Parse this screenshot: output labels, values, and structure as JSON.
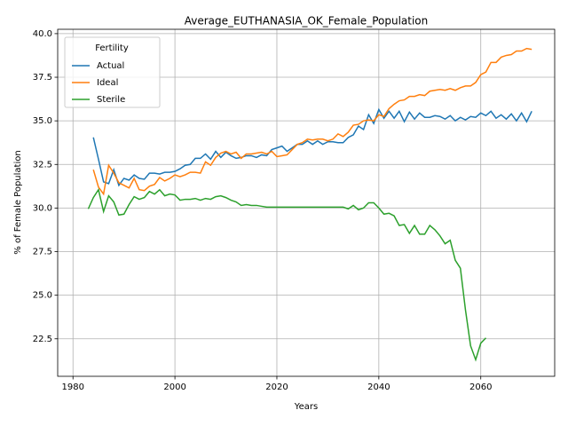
{
  "chart_data": {
    "type": "line",
    "title": "Average_EUTHANASIA_OK_Female_Population",
    "xlabel": "Years",
    "ylabel": "% of Female Population",
    "legend_title": "Fertility",
    "legend": "upper left",
    "grid": true,
    "xlim": [
      1977,
      2074.5
    ],
    "ylim": [
      20.35,
      40.25
    ],
    "xticks": [
      1980,
      2000,
      2020,
      2040,
      2060
    ],
    "yticks": [
      22.5,
      {
        "value": 25,
        "label": "25.0"
      },
      27.5,
      {
        "value": 30,
        "label": "30.0"
      },
      32.5,
      {
        "value": 35,
        "label": "35.0"
      },
      37.5,
      {
        "value": 40,
        "label": "40.0"
      }
    ],
    "x": [
      1983,
      1984,
      1985,
      1986,
      1987,
      1988,
      1989,
      1990,
      1991,
      1992,
      1993,
      1994,
      1995,
      1996,
      1997,
      1998,
      1999,
      2000,
      2001,
      2002,
      2003,
      2004,
      2005,
      2006,
      2007,
      2008,
      2009,
      2010,
      2011,
      2012,
      2013,
      2014,
      2015,
      2016,
      2017,
      2018,
      2019,
      2020,
      2021,
      2022,
      2023,
      2024,
      2025,
      2026,
      2027,
      2028,
      2029,
      2030,
      2031,
      2032,
      2033,
      2034,
      2035,
      2036,
      2037,
      2038,
      2039,
      2040,
      2041,
      2042,
      2043,
      2044,
      2045,
      2046,
      2047,
      2048,
      2049,
      2050,
      2051,
      2052,
      2053,
      2054,
      2055,
      2056,
      2057,
      2058,
      2059,
      2060,
      2061,
      2062,
      2063,
      2064,
      2065,
      2066,
      2067,
      2068,
      2069,
      2070
    ],
    "series": [
      {
        "name": "Actual",
        "color": "#1f77b4",
        "values": [
          null,
          34.05,
          32.8,
          31.5,
          31.4,
          32.2,
          31.3,
          31.7,
          31.6,
          31.9,
          31.7,
          31.65,
          32.0,
          32.0,
          31.95,
          32.05,
          32.05,
          32.1,
          32.25,
          32.45,
          32.5,
          32.85,
          32.85,
          33.1,
          32.8,
          33.25,
          32.9,
          33.2,
          33.0,
          32.85,
          32.9,
          33.0,
          33.0,
          32.9,
          33.05,
          33.0,
          33.35,
          33.45,
          33.55,
          33.25,
          33.45,
          33.65,
          33.65,
          33.85,
          33.65,
          33.85,
          33.65,
          33.8,
          33.8,
          33.75,
          33.75,
          34.05,
          34.2,
          34.7,
          34.5,
          35.35,
          34.85,
          35.65,
          35.15,
          35.55,
          35.15,
          35.55,
          34.95,
          35.5,
          35.1,
          35.45,
          35.2,
          35.2,
          35.3,
          35.25,
          35.1,
          35.3,
          35.0,
          35.2,
          35.05,
          35.25,
          35.2,
          35.45,
          35.3,
          35.55,
          35.15,
          35.35,
          35.1,
          35.4,
          35.0,
          35.45,
          34.95,
          35.55
        ]
      },
      {
        "name": "Ideal",
        "color": "#ff7f0e",
        "values": [
          null,
          32.2,
          31.2,
          30.8,
          32.45,
          32.0,
          31.45,
          31.3,
          31.15,
          31.7,
          31.05,
          31.0,
          31.25,
          31.35,
          31.75,
          31.55,
          31.7,
          31.9,
          31.8,
          31.9,
          32.05,
          32.05,
          32.0,
          32.65,
          32.45,
          32.9,
          33.15,
          33.25,
          33.1,
          33.2,
          32.85,
          33.1,
          33.1,
          33.15,
          33.2,
          33.1,
          33.25,
          32.95,
          33.0,
          33.05,
          33.35,
          33.65,
          33.75,
          33.95,
          33.9,
          33.95,
          33.95,
          33.85,
          33.95,
          34.25,
          34.1,
          34.35,
          34.75,
          34.8,
          35.0,
          35.05,
          35.0,
          35.35,
          35.25,
          35.7,
          35.95,
          36.15,
          36.2,
          36.4,
          36.4,
          36.5,
          36.45,
          36.7,
          36.75,
          36.8,
          36.75,
          36.85,
          36.75,
          36.9,
          37.0,
          37.0,
          37.2,
          37.65,
          37.8,
          38.35,
          38.35,
          38.65,
          38.75,
          38.8,
          39.0,
          39.0,
          39.15,
          39.1
        ]
      },
      {
        "name": "Sterile",
        "color": "#2ca02c",
        "values": [
          29.95,
          30.6,
          31.05,
          29.8,
          30.7,
          30.35,
          29.6,
          29.65,
          30.2,
          30.65,
          30.5,
          30.6,
          30.95,
          30.8,
          31.05,
          30.7,
          30.8,
          30.75,
          30.45,
          30.5,
          30.5,
          30.55,
          30.45,
          30.55,
          30.5,
          30.65,
          30.7,
          30.6,
          30.45,
          30.35,
          30.15,
          30.2,
          30.15,
          30.15,
          30.1,
          30.05,
          30.05,
          30.05,
          30.05,
          30.05,
          30.05,
          30.05,
          30.05,
          30.05,
          30.05,
          30.05,
          30.05,
          30.05,
          30.05,
          30.05,
          30.05,
          29.95,
          30.15,
          29.9,
          30.0,
          30.3,
          30.3,
          30.0,
          29.65,
          29.7,
          29.55,
          29.0,
          29.05,
          28.55,
          29.0,
          28.5,
          28.5,
          29.0,
          28.75,
          28.4,
          27.95,
          28.15,
          27.0,
          26.55,
          24.15,
          22.1,
          21.3,
          22.25,
          22.55,
          null,
          null,
          null,
          null,
          null,
          null,
          null,
          null,
          null
        ]
      }
    ]
  }
}
